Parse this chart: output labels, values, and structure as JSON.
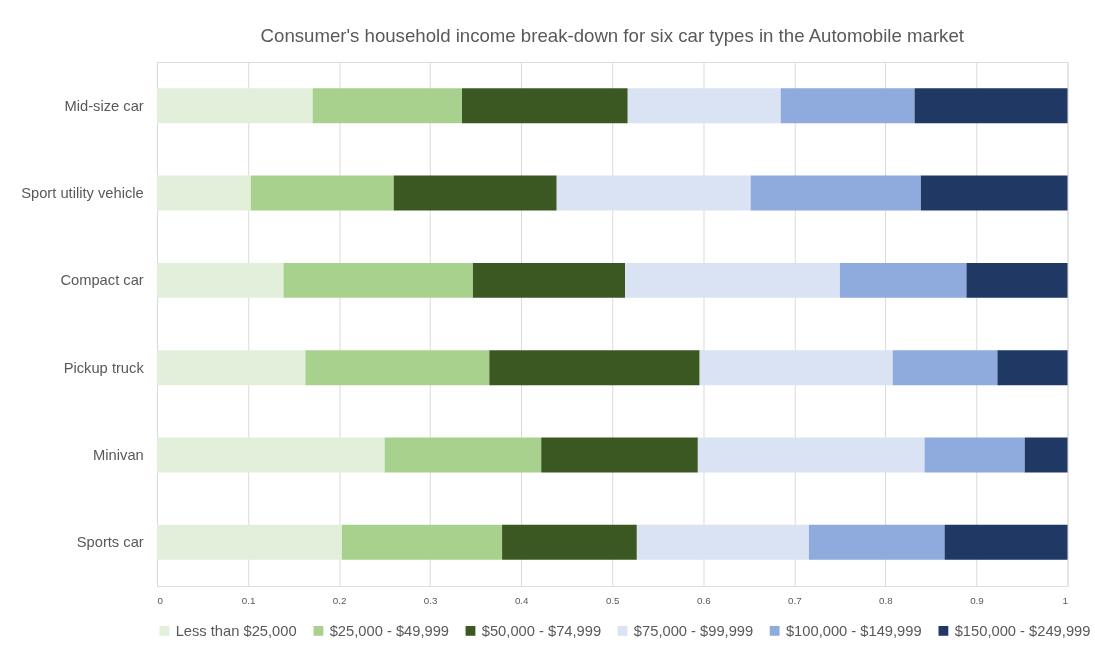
{
  "chart_data": {
    "type": "bar",
    "orientation": "horizontal",
    "stacked": true,
    "title": "Consumer's household income break-down for six car types in the Automobile market",
    "categories": [
      "Mid-size car",
      "Sport utility vehicle",
      "Compact car",
      "Pickup truck",
      "Minivan",
      "Sports car"
    ],
    "series": [
      {
        "name": "Less than $25,000",
        "color": "#e2efda",
        "values": [
          0.171,
          0.103,
          0.139,
          0.163,
          0.25,
          0.203
        ]
      },
      {
        "name": "$25,000 - $49,999",
        "color": "#a9d18e",
        "values": [
          0.164,
          0.157,
          0.208,
          0.202,
          0.172,
          0.176
        ]
      },
      {
        "name": "$50,000 - $74,999",
        "color": "#3b5823",
        "values": [
          0.182,
          0.179,
          0.167,
          0.231,
          0.172,
          0.148
        ]
      },
      {
        "name": "$75,000 - $99,999",
        "color": "#dae3f3",
        "values": [
          0.168,
          0.213,
          0.236,
          0.212,
          0.249,
          0.189
        ]
      },
      {
        "name": "$100,000 - $149,999",
        "color": "#8faadc",
        "values": [
          0.147,
          0.187,
          0.139,
          0.115,
          0.11,
          0.149
        ]
      },
      {
        "name": "$150,000 - $249,999",
        "color": "#203864",
        "values": [
          0.168,
          0.161,
          0.111,
          0.077,
          0.047,
          0.135
        ]
      }
    ],
    "xlim": [
      0,
      1
    ],
    "xticks": [
      0,
      0.1,
      0.2,
      0.3,
      0.4,
      0.5,
      0.6,
      0.7,
      0.8,
      0.9,
      1
    ],
    "grid": "x",
    "legend": "bottom"
  }
}
